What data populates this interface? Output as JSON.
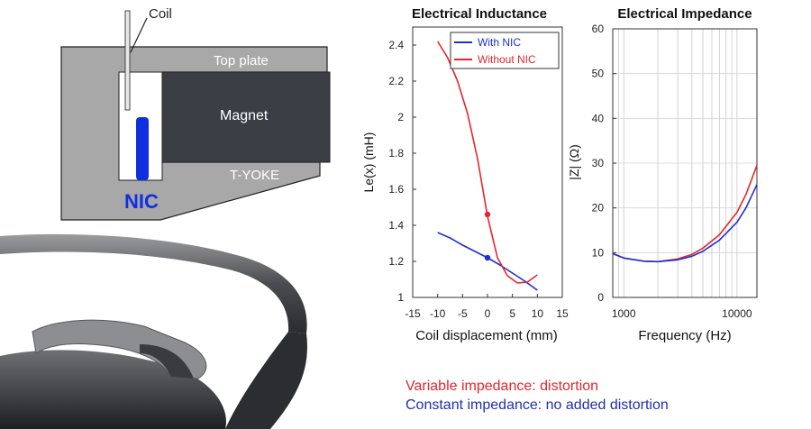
{
  "diagram": {
    "labels": {
      "coil": "Coil",
      "top_plate": "Top plate",
      "magnet": "Magnet",
      "t_yoke": "T-YOKE",
      "nic": "NIC"
    },
    "colors": {
      "steel": "#a8a8a8",
      "magnet": "#3b3f45",
      "nic": "#1030e0"
    }
  },
  "captions": {
    "variable": "Variable impedance: distortion",
    "constant": "Constant impedance: no added distortion",
    "variable_color": "#e8242a",
    "constant_color": "#1f2fb0"
  },
  "chart_data": [
    {
      "type": "line",
      "title": "Electrical Inductance",
      "xlabel": "Coil displacement (mm)",
      "ylabel": "Le(x) (mH)",
      "xlim": [
        -15,
        15
      ],
      "ylim": [
        1,
        2.5
      ],
      "xticks": [
        -15,
        -10,
        -5,
        0,
        5,
        10,
        15
      ],
      "yticks": [
        1,
        1.2,
        1.4,
        1.6,
        1.8,
        2,
        2.2,
        2.4
      ],
      "xtick_labels": [
        "-15",
        "-10",
        "-5",
        "0",
        "5",
        "10",
        "15"
      ],
      "ytick_labels": [
        "1",
        "1.2",
        "1.4",
        "1.6",
        "1.8",
        "2",
        "2.2",
        "2.4"
      ],
      "legend": "top-right",
      "grid": false,
      "series": [
        {
          "name": "With NIC",
          "color": "#1f2fd0",
          "x": [
            -10,
            -7.5,
            -5,
            -2.5,
            0,
            2.5,
            5,
            7.5,
            10
          ],
          "y": [
            1.36,
            1.33,
            1.29,
            1.255,
            1.22,
            1.18,
            1.135,
            1.09,
            1.04
          ],
          "marker": [
            0,
            1.22
          ]
        },
        {
          "name": "Without NIC",
          "color": "#e8242a",
          "x": [
            -10,
            -8,
            -6,
            -4,
            -2,
            0,
            2,
            4,
            6,
            8,
            10
          ],
          "y": [
            2.42,
            2.33,
            2.2,
            2.02,
            1.77,
            1.45,
            1.22,
            1.12,
            1.08,
            1.085,
            1.125
          ],
          "marker": [
            0,
            1.46
          ]
        }
      ]
    },
    {
      "type": "line",
      "title": "Electrical Impedance",
      "xlabel": "Frequency (Hz)",
      "ylabel": "|Z| (Ω)",
      "xscale": "log",
      "xlim": [
        800,
        15000
      ],
      "ylim": [
        0,
        60
      ],
      "xticks": [
        1000,
        10000
      ],
      "yticks": [
        0,
        10,
        20,
        30,
        40,
        50,
        60
      ],
      "xtick_labels": [
        "1000",
        "10000"
      ],
      "ytick_labels": [
        "0",
        "10",
        "20",
        "30",
        "40",
        "50",
        "60"
      ],
      "grid": true,
      "series": [
        {
          "color": "#e8242a",
          "x": [
            800,
            1000,
            1500,
            2000,
            3000,
            4000,
            5000,
            7000,
            10000,
            12000,
            15000
          ],
          "y": [
            9.8,
            8.8,
            8.1,
            8.0,
            8.6,
            9.6,
            11,
            14,
            19,
            23,
            29.5
          ]
        },
        {
          "color": "#1f2fd0",
          "x": [
            800,
            1000,
            1500,
            2000,
            3000,
            4000,
            5000,
            7000,
            10000,
            12000,
            15000
          ],
          "y": [
            9.8,
            8.8,
            8.1,
            8.0,
            8.4,
            9.2,
            10.3,
            12.8,
            16.8,
            20,
            25.2
          ]
        }
      ]
    }
  ]
}
